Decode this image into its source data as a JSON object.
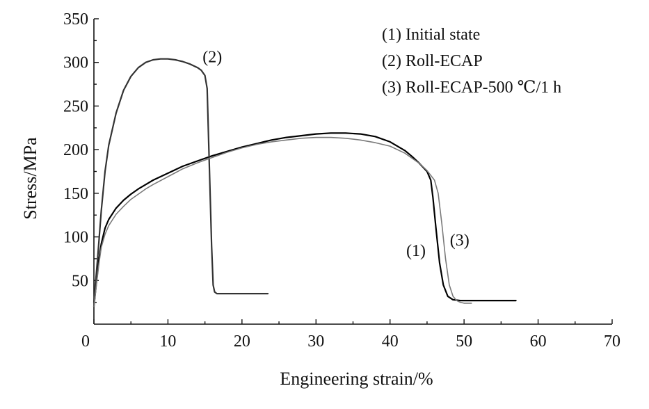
{
  "chart_data": {
    "type": "line",
    "title": "",
    "xlabel": "Engineering strain/%",
    "ylabel": "Stress/MPa",
    "xlim": [
      0,
      70
    ],
    "ylim": [
      0,
      350
    ],
    "x_ticks": [
      0,
      10,
      20,
      30,
      40,
      50,
      60,
      70
    ],
    "y_ticks": [
      50,
      100,
      150,
      200,
      250,
      300,
      350
    ],
    "grid": false,
    "legend_position": "top-right",
    "legend": [
      "(1) Initial state",
      "(2) Roll-ECAP",
      "(3) Roll-ECAP-500 ℃/1 h"
    ],
    "series": [
      {
        "name": "(1)",
        "color": "#000000",
        "x": [
          0,
          0.3,
          0.7,
          1,
          1.5,
          2,
          3,
          4,
          5,
          6,
          7,
          8,
          10,
          12,
          14,
          16,
          18,
          20,
          22,
          24,
          26,
          28,
          30,
          32,
          34,
          36,
          38,
          40,
          42,
          43,
          44,
          45,
          45.5,
          45.8,
          46.2,
          46.7,
          47.2,
          47.8,
          48.5,
          49.5,
          51,
          53,
          55,
          57
        ],
        "y": [
          20,
          45,
          75,
          92,
          110,
          120,
          133,
          142,
          149,
          155,
          160,
          165,
          173,
          181,
          187,
          193,
          198,
          203,
          207,
          211,
          214,
          216,
          218,
          219,
          219,
          218,
          215,
          209,
          199,
          192,
          184,
          175,
          165,
          145,
          110,
          70,
          45,
          32,
          28,
          27,
          27,
          27,
          27,
          27
        ]
      },
      {
        "name": "(2)",
        "color": "#333333",
        "x": [
          0,
          0.5,
          1,
          1.5,
          2,
          3,
          4,
          5,
          6,
          7,
          8,
          9,
          10,
          11,
          12,
          13,
          14,
          14.5,
          15,
          15.3,
          15.6,
          15.9,
          16.1,
          16.3,
          16.6,
          17,
          18,
          20,
          22,
          23.5
        ],
        "y": [
          25,
          75,
          130,
          175,
          205,
          242,
          268,
          284,
          294,
          300,
          303,
          304,
          304,
          303,
          301,
          298,
          294,
          291,
          285,
          270,
          180,
          90,
          45,
          37,
          35,
          35,
          35,
          35,
          35,
          35
        ]
      },
      {
        "name": "(3)",
        "color": "#7a7a7a",
        "x": [
          0,
          0.3,
          0.7,
          1,
          1.5,
          2,
          3,
          4,
          5,
          6,
          7,
          8,
          10,
          12,
          14,
          16,
          18,
          20,
          22,
          24,
          26,
          28,
          30,
          32,
          34,
          36,
          38,
          40,
          42,
          44,
          45,
          46,
          46.5,
          47,
          47.5,
          48,
          48.5,
          49,
          49.5,
          50,
          51
        ],
        "y": [
          20,
          42,
          70,
          88,
          103,
          113,
          126,
          135,
          143,
          149,
          155,
          160,
          169,
          178,
          185,
          191,
          197,
          202,
          206,
          209,
          211,
          213,
          214,
          214,
          213,
          211,
          208,
          204,
          196,
          184,
          176,
          165,
          150,
          115,
          75,
          45,
          32,
          27,
          25,
          24,
          24
        ]
      }
    ],
    "annotations": [
      {
        "text": "(1)",
        "x": 43.5,
        "y": 78
      },
      {
        "text": "(2)",
        "x": 16,
        "y": 300
      },
      {
        "text": "(3)",
        "x": 49.4,
        "y": 90
      }
    ],
    "zero_label": "0"
  }
}
